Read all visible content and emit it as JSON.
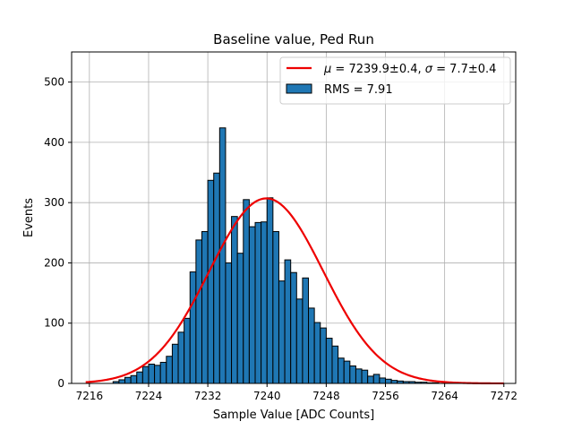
{
  "chart_data": {
    "type": "bar",
    "title": "Baseline value, Ped Run",
    "xlabel": "Sample Value [ADC Counts]",
    "ylabel": "Events",
    "xlim": [
      7213.6,
      7273.6
    ],
    "ylim": [
      0,
      550
    ],
    "xticks": [
      7216,
      7224,
      7232,
      7240,
      7248,
      7256,
      7264,
      7272
    ],
    "yticks": [
      0,
      100,
      200,
      300,
      400,
      500
    ],
    "grid": true,
    "legend_position": "top-right",
    "bin_start": 7216,
    "bin_width": 0.8,
    "histogram": {
      "name": "RMS = 7.91",
      "color": "#1f77b4",
      "values": [
        0,
        0,
        0,
        0,
        3,
        6,
        10,
        13,
        19,
        28,
        32,
        30,
        35,
        45,
        65,
        85,
        108,
        185,
        238,
        252,
        337,
        349,
        424,
        200,
        277,
        216,
        305,
        260,
        267,
        268,
        308,
        252,
        170,
        205,
        184,
        140,
        175,
        125,
        101,
        92,
        75,
        62,
        42,
        37,
        29,
        24,
        22,
        12,
        15,
        9,
        7,
        5,
        4,
        3,
        3,
        2,
        2,
        1,
        1,
        0,
        0,
        0,
        0,
        0,
        0,
        0,
        0,
        0,
        0,
        0
      ]
    },
    "fit": {
      "name": "$\\mu=7239.9\\pm0.4$, $\\sigma=7.7\\pm0.4$",
      "label_mu": "μ",
      "label_text": " = 7239.9±0.4, ",
      "label_sigma": "σ",
      "label_text2": " = 7.7±0.4",
      "color": "#ee0000",
      "mu": 7239.9,
      "sigma": 7.7,
      "amplitude": 307,
      "x_range": [
        7215.5,
        7272
      ]
    }
  }
}
